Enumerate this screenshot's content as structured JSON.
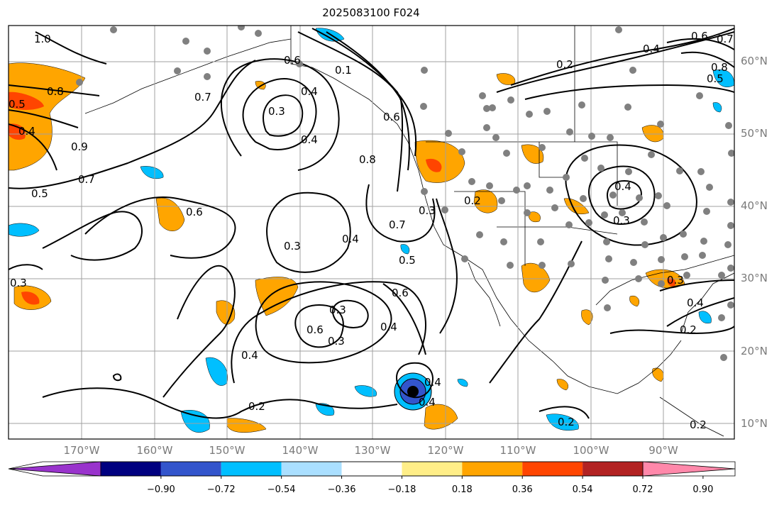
{
  "title": "2025083100 F024",
  "lat_labels": [
    "60°N",
    "50°N",
    "40°N",
    "30°N",
    "20°N",
    "10°N"
  ],
  "lon_labels": [
    "170°W",
    "160°W",
    "150°W",
    "140°W",
    "130°W",
    "120°W",
    "110°W",
    "100°W",
    "90°W"
  ],
  "colorbar": {
    "tick_labels": [
      "−0.90",
      "−0.72",
      "−0.54",
      "−0.36",
      "−0.18",
      "0.18",
      "0.36",
      "0.54",
      "0.72",
      "0.90"
    ],
    "colors": [
      "#9933cc",
      "#000080",
      "#3355cc",
      "#00bfff",
      "#aadfff",
      "#ffffff",
      "#ffee88",
      "#ffa500",
      "#ff4500",
      "#b22222",
      "#ff88aa"
    ]
  },
  "contour_labels": [
    "1.0",
    "0.8",
    "0.5",
    "0.4",
    "0.9",
    "0.7",
    "0.5",
    "0.3",
    "0.6",
    "0.7",
    "0.4",
    "0.3",
    "0.4",
    "0.8",
    "0.7",
    "0.6",
    "0.4",
    "0.3",
    "0.5",
    "0.6",
    "0.4",
    "0.3",
    "0.6",
    "0.3",
    "0.4",
    "0.2",
    "0.4",
    "0.2",
    "0.2",
    "0.3",
    "0.4",
    "0.6",
    "0.1",
    "0.4",
    "0.3",
    "0.2",
    "0.4",
    "0.5",
    "0.2",
    "0.3",
    "0.4",
    "0.2",
    "0.8",
    "0.7",
    "0.6"
  ],
  "colors": {
    "orange": "#ffa500",
    "red": "#ff4500",
    "light_blue": "#00bfff",
    "blue": "#3355cc",
    "station": "#808080",
    "grid": "#a0a0a0"
  }
}
